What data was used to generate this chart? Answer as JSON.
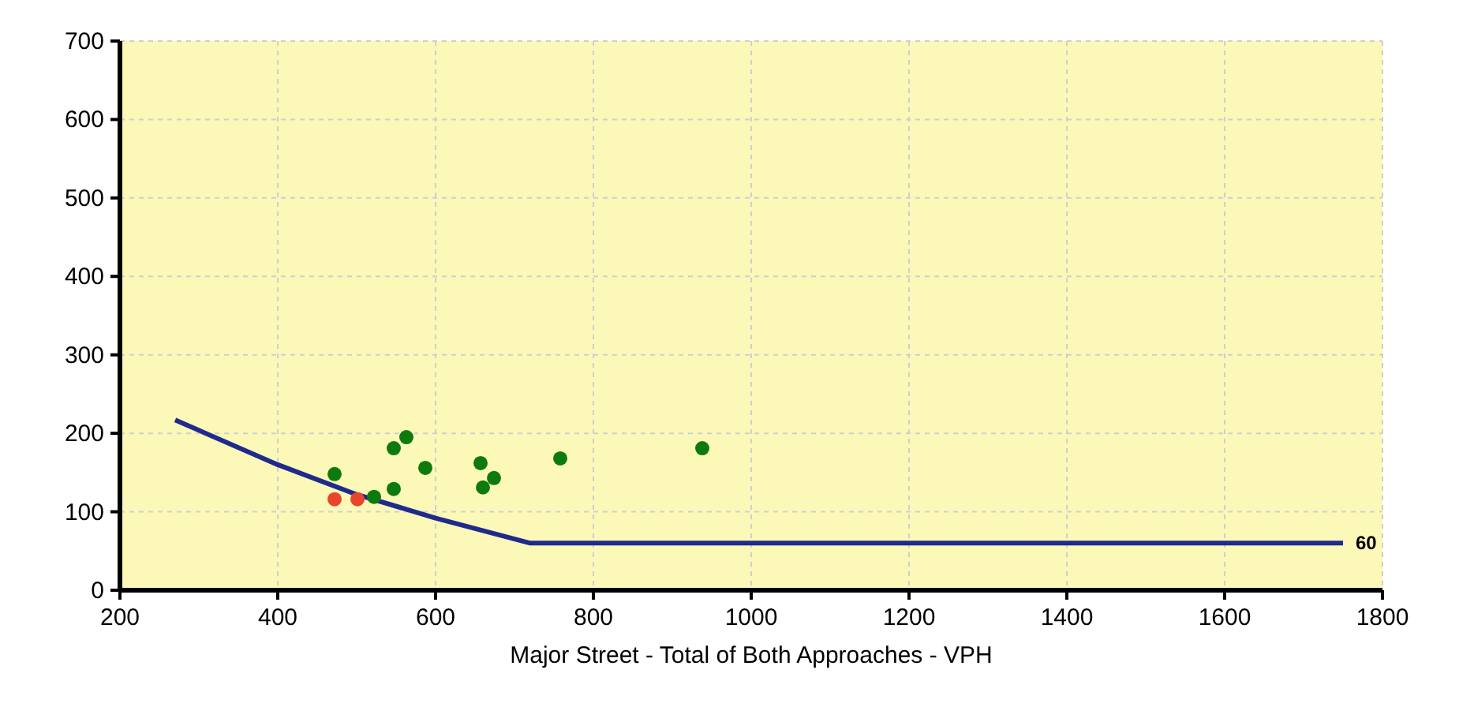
{
  "chart_data": {
    "type": "scatter",
    "xlabel": "Major Street - Total of Both Approaches - VPH",
    "xlim": [
      200,
      1800
    ],
    "ylim": [
      0,
      700
    ],
    "xticks": [
      200,
      400,
      600,
      800,
      1000,
      1200,
      1400,
      1600,
      1800
    ],
    "yticks": [
      0,
      100,
      200,
      300,
      400,
      500,
      600,
      700
    ],
    "grid": true,
    "series": [
      {
        "type": "line",
        "color": "#1f2a8c",
        "x": [
          270,
          400,
          500,
          600,
          720,
          1750
        ],
        "values": [
          217,
          160,
          122,
          92,
          60,
          60
        ]
      },
      {
        "marker": "circle",
        "color": "#0e7a0e",
        "x": [
          472,
          547,
          563,
          547,
          522,
          587,
          657,
          660,
          674,
          758,
          938
        ],
        "values": [
          148,
          181,
          195,
          129,
          119,
          156,
          162,
          131,
          143,
          168,
          181
        ]
      },
      {
        "marker": "circle",
        "color": "#e8452c",
        "x": [
          472,
          501
        ],
        "values": [
          116,
          116
        ]
      }
    ],
    "annotations": [
      {
        "text": "60",
        "x": 1750,
        "y": 60
      }
    ]
  }
}
